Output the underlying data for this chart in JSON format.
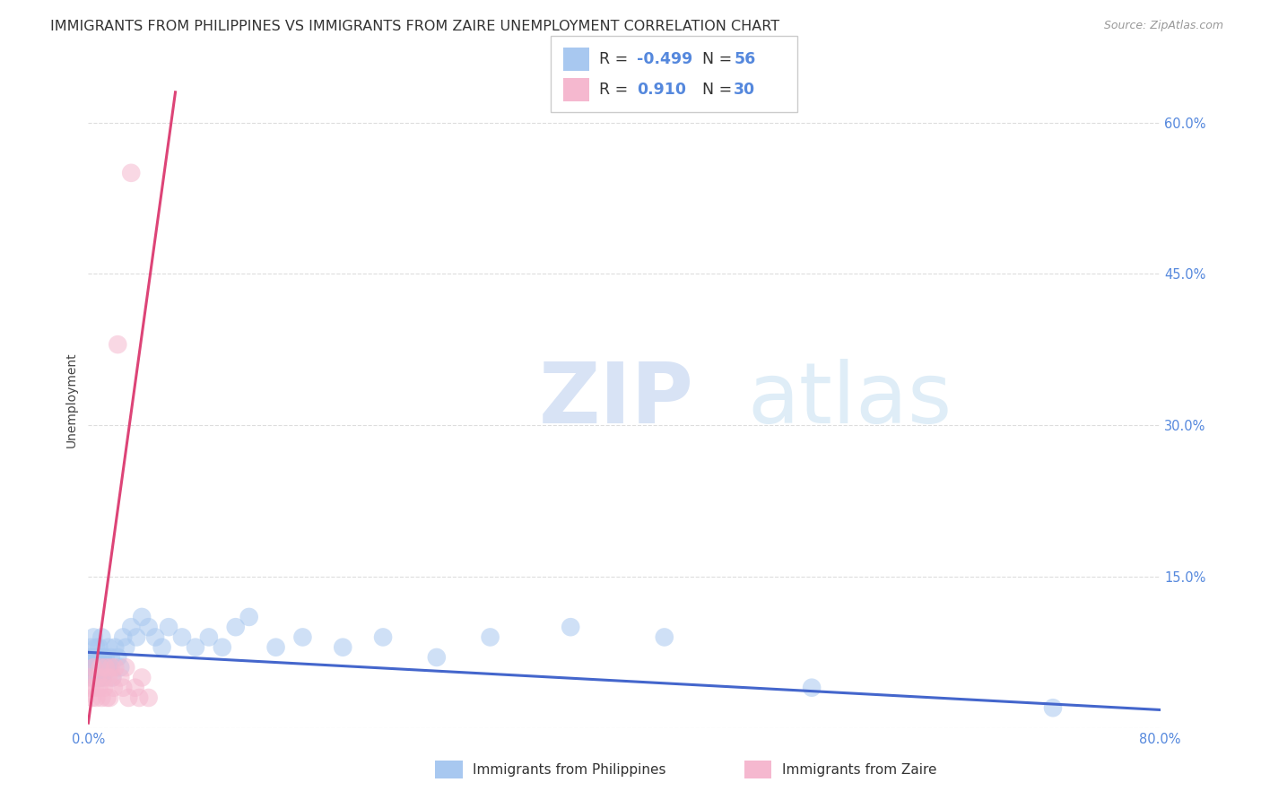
{
  "title": "IMMIGRANTS FROM PHILIPPINES VS IMMIGRANTS FROM ZAIRE UNEMPLOYMENT CORRELATION CHART",
  "source": "Source: ZipAtlas.com",
  "ylabel": "Unemployment",
  "xlim": [
    0,
    0.8
  ],
  "ylim": [
    0,
    0.65
  ],
  "yticks": [
    0.0,
    0.15,
    0.3,
    0.45,
    0.6
  ],
  "ytick_labels": [
    "",
    "15.0%",
    "30.0%",
    "45.0%",
    "60.0%"
  ],
  "xticks": [
    0.0,
    0.2,
    0.4,
    0.6,
    0.8
  ],
  "xtick_labels": [
    "0.0%",
    "",
    "",
    "",
    "80.0%"
  ],
  "grid_color": "#dddddd",
  "background_color": "#ffffff",
  "color_philippines": "#a8c8f0",
  "color_zaire": "#f5b8cf",
  "trendline_philippines_color": "#4466cc",
  "trendline_zaire_color": "#dd4477",
  "philippines_x": [
    0.001,
    0.002,
    0.002,
    0.003,
    0.003,
    0.004,
    0.004,
    0.005,
    0.005,
    0.006,
    0.006,
    0.007,
    0.007,
    0.008,
    0.008,
    0.009,
    0.009,
    0.01,
    0.01,
    0.011,
    0.011,
    0.012,
    0.013,
    0.014,
    0.015,
    0.016,
    0.017,
    0.018,
    0.02,
    0.022,
    0.024,
    0.026,
    0.028,
    0.032,
    0.036,
    0.04,
    0.045,
    0.05,
    0.055,
    0.06,
    0.07,
    0.08,
    0.09,
    0.1,
    0.11,
    0.12,
    0.14,
    0.16,
    0.19,
    0.22,
    0.26,
    0.3,
    0.36,
    0.43,
    0.54,
    0.72
  ],
  "philippines_y": [
    0.07,
    0.06,
    0.08,
    0.05,
    0.07,
    0.06,
    0.09,
    0.07,
    0.05,
    0.08,
    0.06,
    0.07,
    0.05,
    0.08,
    0.06,
    0.07,
    0.05,
    0.09,
    0.06,
    0.07,
    0.05,
    0.06,
    0.07,
    0.06,
    0.08,
    0.06,
    0.07,
    0.05,
    0.08,
    0.07,
    0.06,
    0.09,
    0.08,
    0.1,
    0.09,
    0.11,
    0.1,
    0.09,
    0.08,
    0.1,
    0.09,
    0.08,
    0.09,
    0.08,
    0.1,
    0.11,
    0.08,
    0.09,
    0.08,
    0.09,
    0.07,
    0.09,
    0.1,
    0.09,
    0.04,
    0.02
  ],
  "zaire_x": [
    0.001,
    0.002,
    0.003,
    0.004,
    0.005,
    0.006,
    0.007,
    0.008,
    0.009,
    0.01,
    0.011,
    0.012,
    0.013,
    0.014,
    0.015,
    0.016,
    0.017,
    0.018,
    0.019,
    0.02,
    0.022,
    0.024,
    0.026,
    0.028,
    0.03,
    0.032,
    0.035,
    0.038,
    0.04,
    0.045
  ],
  "zaire_y": [
    0.05,
    0.04,
    0.03,
    0.06,
    0.04,
    0.03,
    0.05,
    0.04,
    0.06,
    0.03,
    0.05,
    0.04,
    0.06,
    0.03,
    0.05,
    0.03,
    0.06,
    0.05,
    0.04,
    0.06,
    0.38,
    0.05,
    0.04,
    0.06,
    0.03,
    0.55,
    0.04,
    0.03,
    0.05,
    0.03
  ],
  "philippines_trend_x": [
    0.0,
    0.8
  ],
  "philippines_trend_y": [
    0.075,
    0.018
  ],
  "zaire_trend_x": [
    0.0,
    0.065
  ],
  "zaire_trend_y": [
    0.005,
    0.63
  ],
  "marker_size": 220,
  "marker_alpha": 0.55,
  "title_fontsize": 11.5,
  "axis_label_fontsize": 10,
  "tick_fontsize": 10.5,
  "right_tick_color": "#5588dd"
}
